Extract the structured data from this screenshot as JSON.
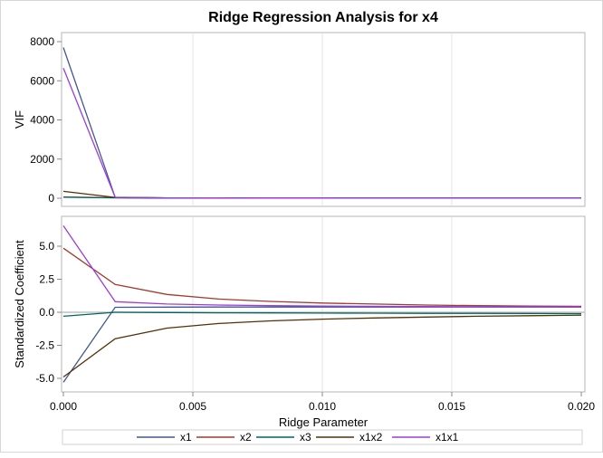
{
  "chart_data": [
    {
      "type": "line",
      "title": "Ridge Regression Analysis for x4",
      "xlabel": "Ridge Parameter",
      "ylabel": "VIF",
      "x": [
        0.0,
        0.002,
        0.004,
        0.006,
        0.008,
        0.01,
        0.012,
        0.014,
        0.016,
        0.018,
        0.02
      ],
      "xlim": [
        0.0,
        0.02
      ],
      "ylim": [
        -400,
        8500
      ],
      "yticks": [
        0,
        2000,
        4000,
        6000,
        8000
      ],
      "ytick_labels": [
        "0",
        "2000",
        "4000",
        "6000",
        "8000"
      ],
      "grid": "vertical",
      "series": [
        {
          "name": "x1",
          "values": [
            7700,
            50,
            20,
            12,
            9,
            7,
            6,
            5,
            5,
            4,
            4
          ]
        },
        {
          "name": "x2",
          "values": [
            60,
            30,
            15,
            10,
            8,
            6,
            5,
            5,
            4,
            4,
            4
          ]
        },
        {
          "name": "x3",
          "values": [
            50,
            20,
            10,
            8,
            6,
            5,
            4,
            4,
            4,
            3,
            3
          ]
        },
        {
          "name": "x1x2",
          "values": [
            350,
            40,
            18,
            11,
            8,
            7,
            6,
            5,
            5,
            4,
            4
          ]
        },
        {
          "name": "x1x1",
          "values": [
            6650,
            45,
            20,
            12,
            9,
            7,
            6,
            5,
            5,
            4,
            4
          ]
        }
      ]
    },
    {
      "type": "line",
      "xlabel": "Ridge Parameter",
      "ylabel": "Standardized Coefficient",
      "x": [
        0.0,
        0.002,
        0.004,
        0.006,
        0.008,
        0.01,
        0.012,
        0.014,
        0.016,
        0.018,
        0.02
      ],
      "xlim": [
        0.0,
        0.02
      ],
      "xticks": [
        0.0,
        0.005,
        0.01,
        0.015,
        0.02
      ],
      "xtick_labels": [
        "0.000",
        "0.005",
        "0.010",
        "0.015",
        "0.020"
      ],
      "ylim": [
        -6.0,
        7.2
      ],
      "yticks": [
        -5.0,
        -2.5,
        0.0,
        2.5,
        5.0
      ],
      "ytick_labels": [
        "-5.0",
        "-2.5",
        "0.0",
        "2.5",
        "5.0"
      ],
      "reference_line": 0.0,
      "grid": "vertical",
      "series": [
        {
          "name": "x1",
          "values": [
            -5.3,
            0.38,
            0.39,
            0.4,
            0.4,
            0.4,
            0.4,
            0.4,
            0.4,
            0.4,
            0.4
          ]
        },
        {
          "name": "x2",
          "values": [
            4.85,
            2.1,
            1.35,
            1.0,
            0.82,
            0.7,
            0.62,
            0.55,
            0.5,
            0.47,
            0.45
          ]
        },
        {
          "name": "x3",
          "values": [
            -0.3,
            0.0,
            -0.02,
            -0.04,
            -0.05,
            -0.06,
            -0.07,
            -0.08,
            -0.08,
            -0.09,
            -0.1
          ]
        },
        {
          "name": "x1x2",
          "values": [
            -4.9,
            -2.0,
            -1.2,
            -0.85,
            -0.65,
            -0.52,
            -0.43,
            -0.36,
            -0.3,
            -0.26,
            -0.22
          ]
        },
        {
          "name": "x1x1",
          "values": [
            6.55,
            0.8,
            0.62,
            0.55,
            0.5,
            0.47,
            0.45,
            0.43,
            0.42,
            0.41,
            0.4
          ]
        }
      ]
    }
  ],
  "title": "Ridge Regression Analysis for x4",
  "xlabel": "Ridge Parameter",
  "upper_ylabel": "VIF",
  "lower_ylabel": "Standardized Coefficient",
  "legend": [
    {
      "name": "x1",
      "color": "#445694"
    },
    {
      "name": "x2",
      "color": "#A23A2E"
    },
    {
      "name": "x3",
      "color": "#01665E"
    },
    {
      "name": "x1x2",
      "color": "#543005"
    },
    {
      "name": "x1x1",
      "color": "#9D3CDB"
    }
  ]
}
